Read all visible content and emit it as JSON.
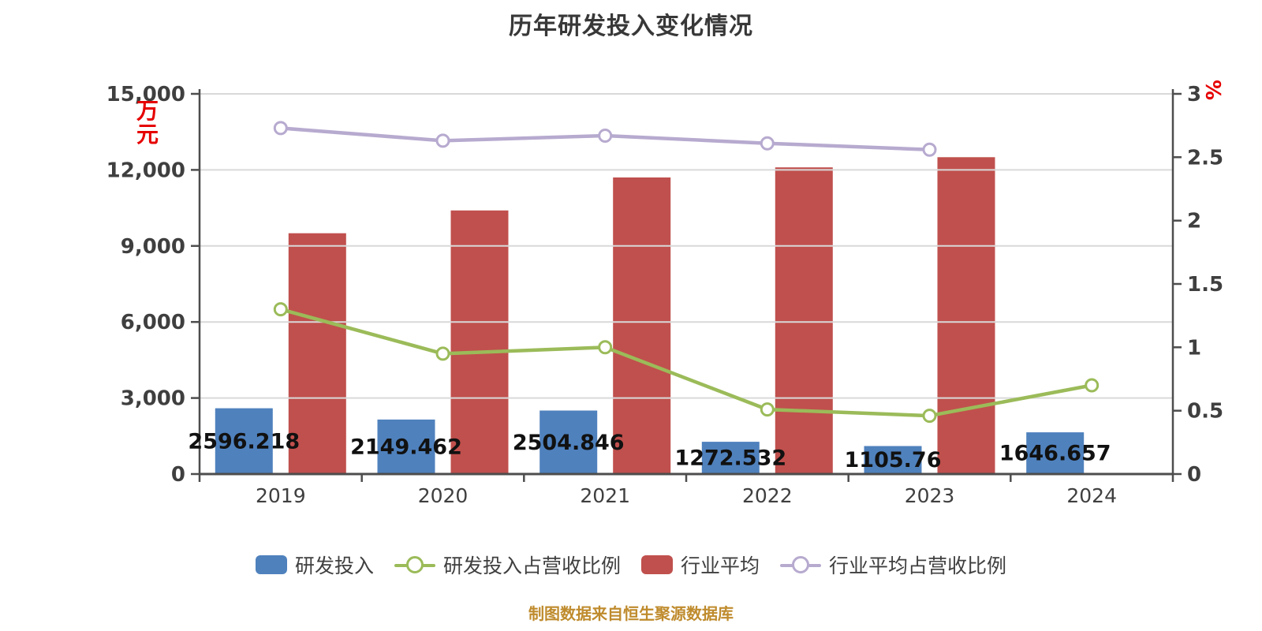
{
  "title": "历年研发投入变化情况",
  "footer": {
    "source_note": "制图数据来自恒生聚源数据库"
  },
  "colors": {
    "rd_bar": "#4f81bd",
    "industry_bar": "#c0504d",
    "rd_ratio_line": "#9bbb59",
    "industry_ratio_line": "#b7aacf",
    "grid": "#d9d9d9",
    "axis": "#4d4d4d",
    "tick_text": "#3f3f3f",
    "bar_label_text": "#111111",
    "unit_text": "#e60000",
    "source_text": "#bf8b2d"
  },
  "chart_data": {
    "type": "bar",
    "title": "历年研发投入变化情况",
    "categories": [
      "2019",
      "2020",
      "2021",
      "2022",
      "2023",
      "2024"
    ],
    "left_axis": {
      "unit": "万元",
      "min": 0,
      "max": 15000,
      "tick_labels": [
        "15,000",
        "12,000",
        "9,000",
        "6,000",
        "3,000",
        "0"
      ]
    },
    "right_axis": {
      "unit": "%",
      "min": 0,
      "max": 3,
      "tick_labels": [
        "3",
        "2.5",
        "2",
        "1.5",
        "1",
        "0.5",
        "0"
      ]
    },
    "grid": true,
    "legend_position": "bottom",
    "series": [
      {
        "name": "研发投入",
        "type": "bar",
        "axis": "left",
        "color": "#4f81bd",
        "values": [
          2596.218,
          2149.462,
          2504.846,
          1272.532,
          1105.76,
          1646.657
        ],
        "labels": [
          "2596.218",
          "2149.462",
          "2504.846",
          "1272.532",
          "1105.76",
          "1646.657"
        ]
      },
      {
        "name": "研发投入占营收比例",
        "type": "line",
        "axis": "right",
        "color": "#9bbb59",
        "values": [
          1.3,
          0.95,
          1.0,
          0.51,
          0.46,
          0.7
        ]
      },
      {
        "name": "行业平均",
        "type": "bar",
        "axis": "left",
        "color": "#c0504d",
        "values": [
          9500,
          10400,
          11700,
          12100,
          12500,
          null
        ]
      },
      {
        "name": "行业平均占营收比例",
        "type": "line",
        "axis": "right",
        "color": "#b7aacf",
        "values": [
          2.73,
          2.63,
          2.67,
          2.61,
          2.56,
          null
        ]
      }
    ]
  }
}
